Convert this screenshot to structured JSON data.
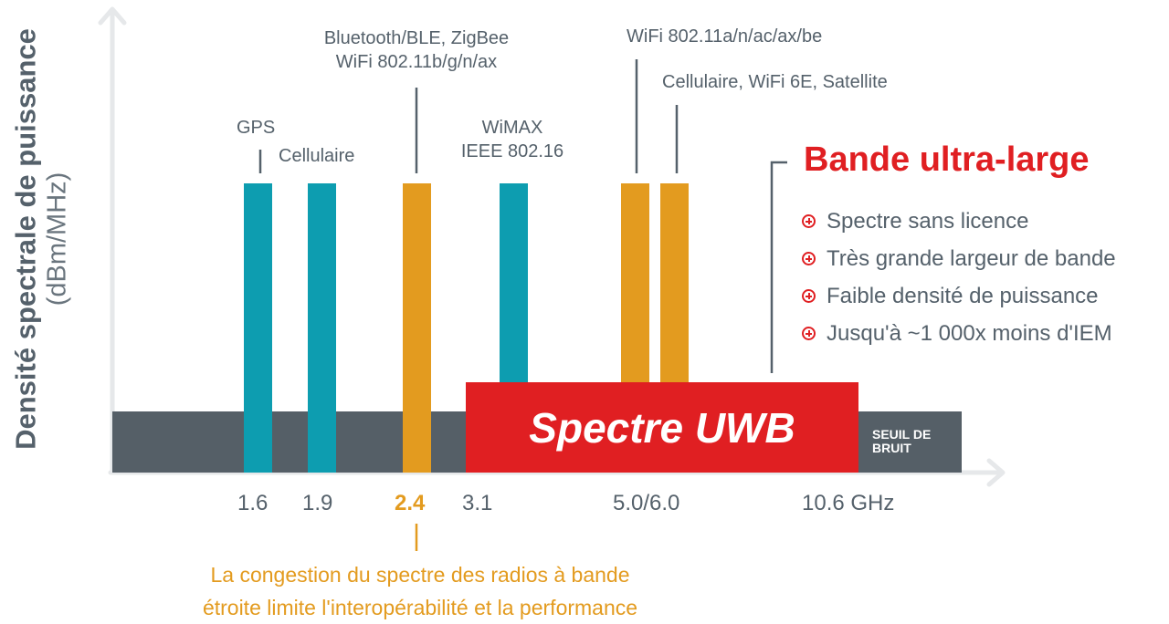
{
  "y_axis": {
    "title": "Densité spectrale de puissance",
    "unit": "(dBm/MHz)"
  },
  "x_ticks": [
    {
      "label": "1.6",
      "highlight": false
    },
    {
      "label": "1.9",
      "highlight": false
    },
    {
      "label": "2.4",
      "highlight": true
    },
    {
      "label": "3.1",
      "highlight": false
    },
    {
      "label": "5.0/6.0",
      "highlight": false
    },
    {
      "label": "10.6 GHz",
      "highlight": false
    }
  ],
  "bands": {
    "gps": {
      "label": "GPS",
      "color": "teal"
    },
    "cellular": {
      "label": "Cellulaire",
      "color": "teal"
    },
    "bluetooth": {
      "line1": "Bluetooth/BLE, ZigBee",
      "line2": "WiFi 802.11b/g/n/ax",
      "color": "orange"
    },
    "wimax": {
      "line1": "WiMAX",
      "line2": "IEEE 802.16",
      "color": "teal"
    },
    "wifi5": {
      "label": "WiFi 802.11a/n/ac/ax/be",
      "color": "orange"
    },
    "wifi6": {
      "label": "Cellulaire, WiFi 6E, Satellite",
      "color": "orange"
    }
  },
  "uwb": {
    "label": "Spectre UWB",
    "title": "Bande ultra-large",
    "benefits": [
      "Spectre sans licence",
      "Très grande largeur de bande",
      "Faible densité de puissance",
      "Jusqu'à ~1 000x moins d'IEM"
    ]
  },
  "noise_floor": {
    "line1": "SEUIL DE",
    "line2": "BRUIT"
  },
  "note": {
    "line1": "La congestion du spectre des radios à bande",
    "line2": "étroite limite l'interopérabilité et la performance"
  },
  "colors": {
    "teal": "#0d9db0",
    "orange": "#e39b1f",
    "red": "#e01f22",
    "noise": "#555f67",
    "axis": "#e6e8ea",
    "text": "#55616b"
  }
}
